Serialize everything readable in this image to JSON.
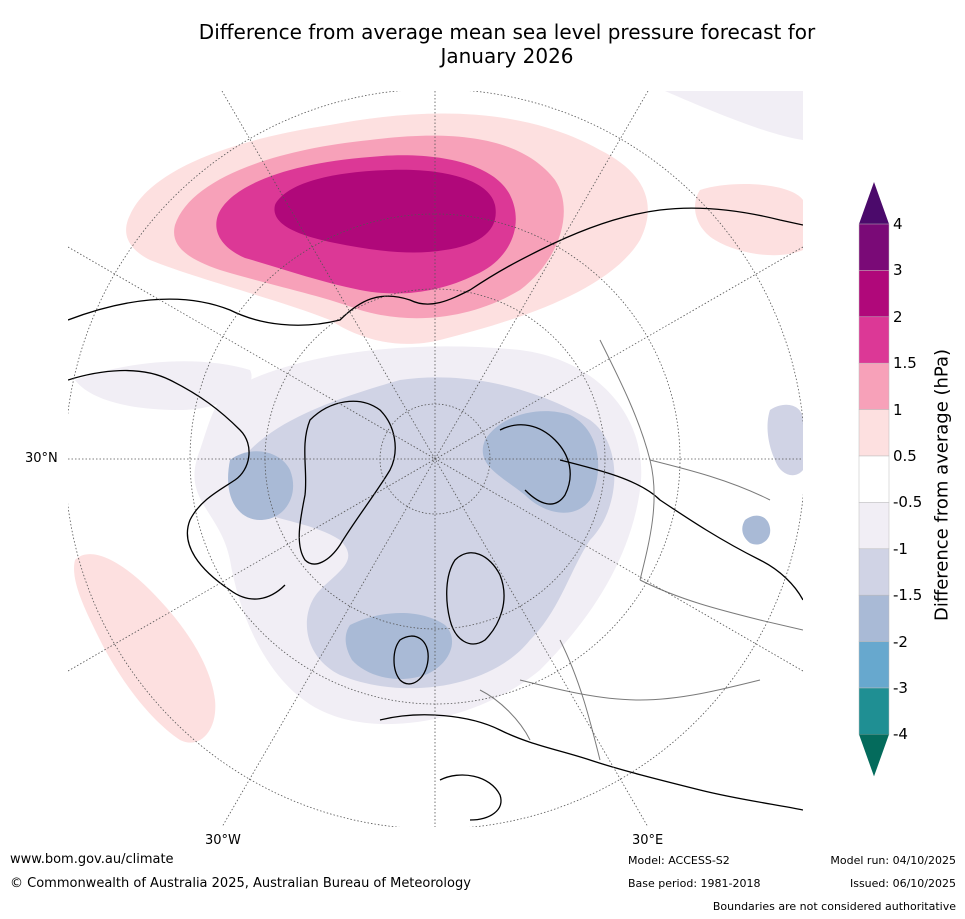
{
  "title_line1": "Difference from average mean sea level pressure forecast for",
  "title_line2": "January 2026",
  "axis_labels": {
    "lat30": "30°N",
    "lon30w": "30°W",
    "lon30e": "30°E"
  },
  "colorbar": {
    "title": "Difference from average (hPa)",
    "ticks": [
      "4",
      "3",
      "2",
      "1.5",
      "1",
      "0.5",
      "-0.5",
      "-1",
      "-1.5",
      "-2",
      "-3",
      "-4"
    ],
    "bins": [
      {
        "range": ">4",
        "color": "#4b0a6b"
      },
      {
        "range": "3 to 4",
        "color": "#7a0a77"
      },
      {
        "range": "2 to 3",
        "color": "#b0087a"
      },
      {
        "range": "1.5 to 2",
        "color": "#dc3896"
      },
      {
        "range": "1 to 1.5",
        "color": "#f7a1b9"
      },
      {
        "range": "0.5 to 1",
        "color": "#fde0e0"
      },
      {
        "range": "-0.5 to 0.5",
        "color": "#ffffff"
      },
      {
        "range": "-1 to -0.5",
        "color": "#f1eef5"
      },
      {
        "range": "-1.5 to -1",
        "color": "#d0d3e5"
      },
      {
        "range": "-2 to -1.5",
        "color": "#a9bad6"
      },
      {
        "range": "-3 to -2",
        "color": "#67a8ce"
      },
      {
        "range": "-4 to -3",
        "color": "#1f8f93"
      },
      {
        "range": "<-4",
        "color": "#046b5c"
      }
    ]
  },
  "footer": {
    "url": "www.bom.gov.au/climate",
    "copyright": "© Commonwealth of Australia 2025, Australian Bureau of Meteorology",
    "model": "Model: ACCESS-S2",
    "base_period": "Base period: 1981-2018",
    "model_run": "Model run: 04/10/2025",
    "issued": "Issued: 06/10/2025",
    "disclaimer": "Boundaries are not considered authoritative"
  }
}
